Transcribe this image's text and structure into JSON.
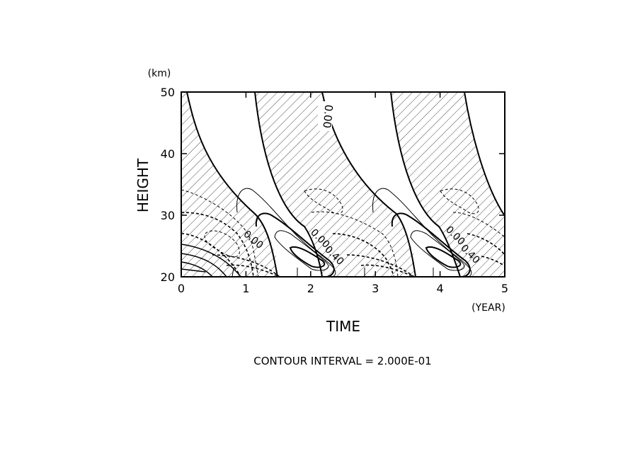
{
  "chart_data": {
    "type": "contour",
    "title": "",
    "xlabel": "TIME",
    "xunit": "(YEAR)",
    "ylabel": "HEIGHT",
    "yunit": "(km)",
    "xlim": [
      0,
      5
    ],
    "ylim": [
      20,
      50
    ],
    "xticks": [
      0,
      1,
      2,
      3,
      4,
      5
    ],
    "yticks": [
      20,
      30,
      40,
      50
    ],
    "xtick_labels": [
      "0",
      "1",
      "2",
      "3",
      "4",
      "5"
    ],
    "ytick_labels": [
      "20",
      "30",
      "40",
      "50"
    ],
    "period_years": 2.3,
    "negative_region_fill": "hatched",
    "contour_interval": 0.2,
    "contour_labels": [
      "0.00",
      "0.00",
      "0.00",
      "0.40",
      "0.00",
      "0.40"
    ],
    "footer": "CONTOUR INTERVAL = 2.000E-01",
    "colors": {
      "line": "#000000",
      "background": "#ffffff"
    }
  }
}
